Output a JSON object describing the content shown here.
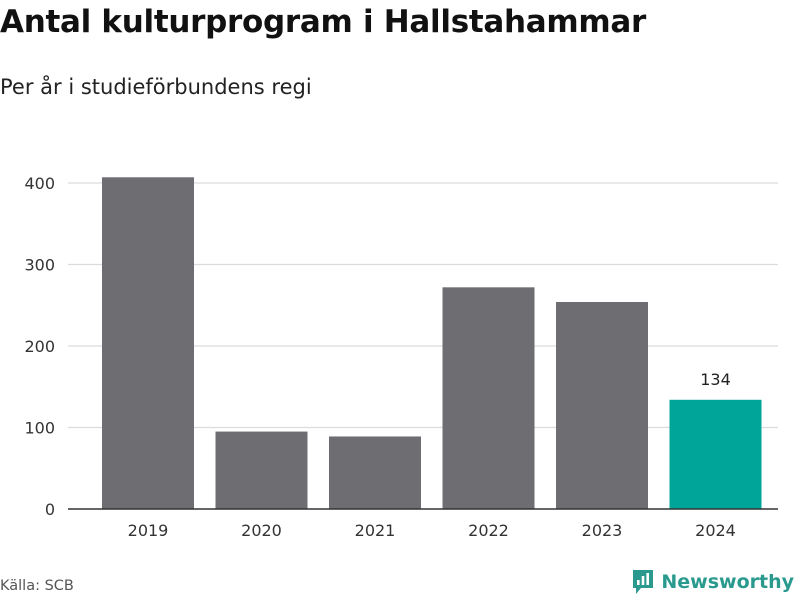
{
  "title": "Antal kulturprogram i Hallstahammar",
  "subtitle": "Per år i studieförbundens regi",
  "source": "Källa: SCB",
  "brand": "Newsworthy",
  "colors": {
    "bar": "#6d6d72",
    "highlight": "#00a599",
    "grid": "#dcdcdc",
    "axis": "#333333",
    "brand": "#2a9a8f"
  },
  "chart_data": {
    "type": "bar",
    "title": "Antal kulturprogram i Hallstahammar",
    "subtitle": "Per år i studieförbundens regi",
    "xlabel": "",
    "ylabel": "",
    "categories": [
      "2019",
      "2020",
      "2021",
      "2022",
      "2023",
      "2024"
    ],
    "values": [
      407,
      95,
      89,
      272,
      254,
      134
    ],
    "highlight_index": 5,
    "data_labels": [
      {
        "index": 5,
        "text": "134"
      }
    ],
    "ylim": [
      0,
      420
    ],
    "yticks": [
      0,
      100,
      200,
      300,
      400
    ],
    "grid": true
  }
}
